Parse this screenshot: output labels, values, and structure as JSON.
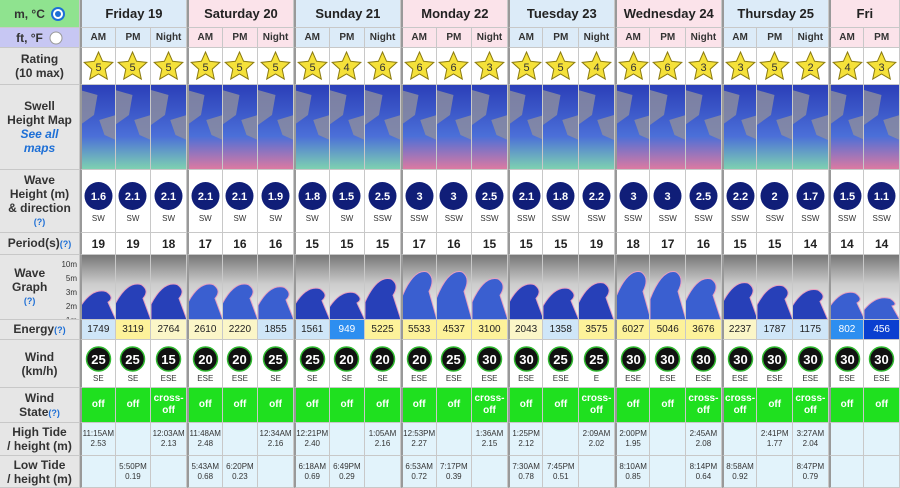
{
  "units": {
    "metric": "m, °C",
    "imperial": "ft, °F"
  },
  "days": [
    {
      "name": "Friday 19",
      "periods": [
        "AM",
        "PM",
        "Night"
      ]
    },
    {
      "name": "Saturday 20",
      "periods": [
        "AM",
        "PM",
        "Night"
      ]
    },
    {
      "name": "Sunday 21",
      "periods": [
        "AM",
        "PM",
        "Night"
      ]
    },
    {
      "name": "Monday 22",
      "periods": [
        "AM",
        "PM",
        "Night"
      ]
    },
    {
      "name": "Tuesday 23",
      "periods": [
        "AM",
        "PM",
        "Night"
      ]
    },
    {
      "name": "Wednesday 24",
      "periods": [
        "AM",
        "PM",
        "Night"
      ]
    },
    {
      "name": "Thursday 25",
      "periods": [
        "AM",
        "PM",
        "Night"
      ]
    },
    {
      "name": "Fri",
      "periods": [
        "AM",
        "PM"
      ]
    }
  ],
  "labels": {
    "rating": {
      "lines": [
        "Rating",
        "(10 max)"
      ]
    },
    "map": {
      "lines": [
        "Swell",
        "Height Map"
      ],
      "link_lines": [
        "See all",
        "maps"
      ]
    },
    "wave": {
      "lines": [
        "Wave",
        "Height (m)",
        "& direction"
      ],
      "help": "(?)"
    },
    "period": {
      "lines": [
        "Period(s)"
      ],
      "help": "(?)",
      "help_inline": true
    },
    "graph": {
      "lines": [
        "Wave",
        "Graph"
      ],
      "help": "(?)",
      "scale": [
        "10m",
        "5m",
        "3m",
        "2m",
        "1m"
      ]
    },
    "energy": {
      "lines": [
        "Energy"
      ],
      "help": "(?)",
      "help_inline": true
    },
    "wind": {
      "lines": [
        "Wind",
        "(km/h)"
      ]
    },
    "state": {
      "lines": [
        "Wind",
        "State"
      ],
      "help": "(?)",
      "help_inline": true
    },
    "high": {
      "lines": [
        "High Tide",
        "/ height (m)"
      ]
    },
    "low": {
      "lines": [
        "Low Tide",
        "/ height (m)"
      ]
    }
  },
  "rows": {
    "rating": [
      5,
      5,
      5,
      5,
      5,
      5,
      5,
      4,
      6,
      6,
      6,
      3,
      5,
      5,
      4,
      6,
      6,
      3,
      3,
      5,
      2,
      4,
      3
    ],
    "wave_height": [
      1.6,
      2.1,
      2.1,
      2.1,
      2.1,
      1.9,
      1.8,
      1.5,
      2.5,
      3,
      3,
      2.5,
      2.1,
      1.8,
      2.2,
      3,
      3,
      2.5,
      2.2,
      2,
      1.7,
      1.5,
      1.1
    ],
    "wave_direction": [
      "SW",
      "SW",
      "SW",
      "SW",
      "SW",
      "SW",
      "SW",
      "SW",
      "SSW",
      "SSW",
      "SSW",
      "SSW",
      "SSW",
      "SSW",
      "SSW",
      "SSW",
      "SSW",
      "SSW",
      "SSW",
      "SSW",
      "SSW",
      "SSW",
      "SSW"
    ],
    "period": [
      19,
      19,
      18,
      17,
      16,
      16,
      15,
      15,
      15,
      17,
      16,
      15,
      15,
      15,
      19,
      18,
      17,
      16,
      15,
      15,
      14,
      14,
      14
    ],
    "energy": [
      1749,
      3119,
      2764,
      2610,
      2220,
      1855,
      1561,
      949,
      5225,
      5533,
      4537,
      3100,
      2043,
      1358,
      3575,
      6027,
      5046,
      3676,
      2237,
      1787,
      1175,
      802,
      456
    ],
    "wind_speed": [
      25,
      25,
      15,
      20,
      20,
      25,
      25,
      20,
      20,
      20,
      25,
      30,
      30,
      25,
      25,
      30,
      30,
      30,
      30,
      30,
      30,
      30,
      30
    ],
    "wind_direction": [
      "SE",
      "SE",
      "ESE",
      "ESE",
      "ESE",
      "SE",
      "SE",
      "SE",
      "SE",
      "ESE",
      "ESE",
      "ESE",
      "ESE",
      "ESE",
      "E",
      "ESE",
      "ESE",
      "ESE",
      "ESE",
      "ESE",
      "ESE",
      "ESE",
      "ESE"
    ],
    "wind_state": [
      "off",
      "off",
      "cross-off",
      "off",
      "off",
      "off",
      "off",
      "off",
      "off",
      "off",
      "off",
      "cross-off",
      "off",
      "off",
      "cross-off",
      "off",
      "off",
      "cross-off",
      "cross-off",
      "off",
      "cross-off",
      "off",
      "off"
    ],
    "high_tide": [
      {
        "time": "11:15AM",
        "height": "2.53"
      },
      null,
      {
        "time": "12:03AM",
        "height": "2.13"
      },
      {
        "time": "11:48AM",
        "height": "2.48"
      },
      null,
      {
        "time": "12:34AM",
        "height": "2.16"
      },
      {
        "time": "12:21PM",
        "height": "2.40"
      },
      null,
      {
        "time": "1:05AM",
        "height": "2.16"
      },
      {
        "time": "12:53PM",
        "height": "2.27"
      },
      null,
      {
        "time": "1:36AM",
        "height": "2.15"
      },
      {
        "time": "1:25PM",
        "height": "2.12"
      },
      null,
      {
        "time": "2:09AM",
        "height": "2.02"
      },
      {
        "time": "2:00PM",
        "height": "1.95"
      },
      null,
      {
        "time": "2:45AM",
        "height": "2.08"
      },
      null,
      {
        "time": "2:41PM",
        "height": "1.77"
      },
      {
        "time": "3:27AM",
        "height": "2.04"
      },
      null,
      null
    ],
    "low_tide": [
      null,
      {
        "time": "5:50PM",
        "height": "0.19"
      },
      null,
      {
        "time": "5:43AM",
        "height": "0.68"
      },
      {
        "time": "6:20PM",
        "height": "0.23"
      },
      null,
      {
        "time": "6:18AM",
        "height": "0.69"
      },
      {
        "time": "6:49PM",
        "height": "0.29"
      },
      null,
      {
        "time": "6:53AM",
        "height": "0.72"
      },
      {
        "time": "7:17PM",
        "height": "0.39"
      },
      null,
      {
        "time": "7:30AM",
        "height": "0.78"
      },
      {
        "time": "7:45PM",
        "height": "0.51"
      },
      null,
      {
        "time": "8:10AM",
        "height": "0.85"
      },
      null,
      {
        "time": "8:14PM",
        "height": "0.64"
      },
      {
        "time": "8:58AM",
        "height": "0.92"
      },
      null,
      {
        "time": "8:47PM",
        "height": "0.79"
      },
      null,
      null
    ]
  }
}
